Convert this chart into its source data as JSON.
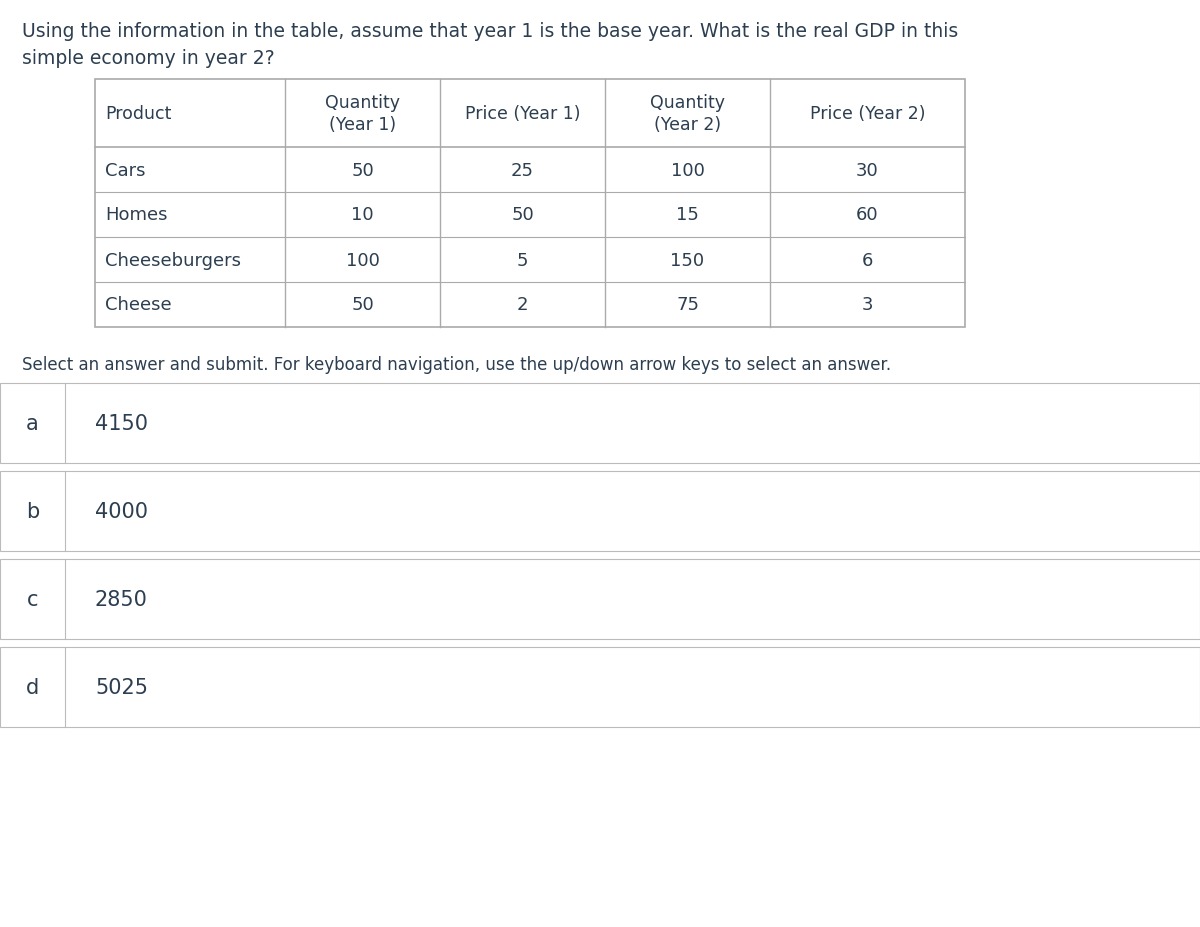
{
  "question": "Using the information in the table, assume that year 1 is the base year. What is the real GDP in this\nsimple economy in year 2?",
  "table_headers": [
    "Product",
    "Quantity\n(Year 1)",
    "Price (Year 1)",
    "Quantity\n(Year 2)",
    "Price (Year 2)"
  ],
  "table_rows": [
    [
      "Cars",
      "50",
      "25",
      "100",
      "30"
    ],
    [
      "Homes",
      "10",
      "50",
      "15",
      "60"
    ],
    [
      "Cheeseburgers",
      "100",
      "5",
      "150",
      "6"
    ],
    [
      "Cheese",
      "50",
      "2",
      "75",
      "3"
    ]
  ],
  "instruction": "Select an answer and submit. For keyboard navigation, use the up/down arrow keys to select an answer.",
  "options": [
    {
      "letter": "a",
      "value": "4150"
    },
    {
      "letter": "b",
      "value": "4000"
    },
    {
      "letter": "c",
      "value": "2850"
    },
    {
      "letter": "d",
      "value": "5025"
    }
  ],
  "bg_color": "#ffffff",
  "text_color": "#2c3e50",
  "table_border_color": "#aaaaaa",
  "option_border_color": "#bbbbbb",
  "question_fontsize": 13.5,
  "table_header_fontsize": 12.5,
  "table_data_fontsize": 13,
  "option_fontsize": 15,
  "letter_fontsize": 15,
  "instruction_fontsize": 12
}
